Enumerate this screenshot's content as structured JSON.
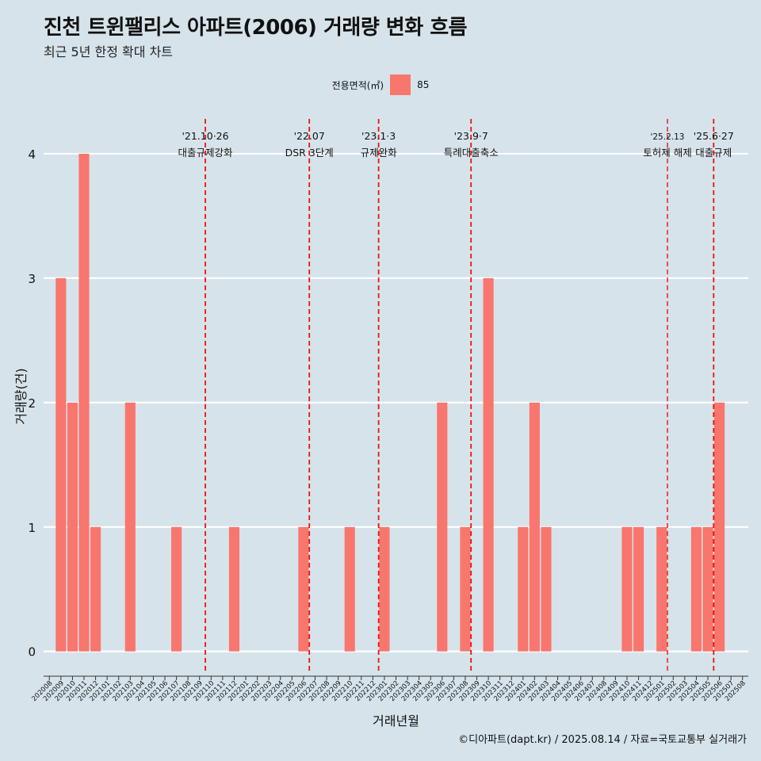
{
  "title": "진천 트윈팰리스 아파트(2006) 거래량 변화 흐름",
  "subtitle": "최근 5년 한정 확대 차트",
  "caption": "©디아파트(dapt.kr) / 2025.08.14 / 자료=국토교통부 실거래가",
  "legend": {
    "title": "전용면적(㎡)",
    "label": "85",
    "color": "#f8766d"
  },
  "chart_data": {
    "type": "bar",
    "xlabel": "거래년월",
    "ylabel": "거래량(건)",
    "ylim": [
      -0.18,
      4.28
    ],
    "yticks": [
      0,
      1,
      2,
      3,
      4
    ],
    "grid": true,
    "bar_color": "#f8766d",
    "categories": [
      "202008",
      "202009",
      "202010",
      "202011",
      "202012",
      "202101",
      "202102",
      "202103",
      "202104",
      "202105",
      "202106",
      "202107",
      "202108",
      "202109",
      "202110",
      "202111",
      "202112",
      "202201",
      "202202",
      "202203",
      "202204",
      "202205",
      "202206",
      "202207",
      "202208",
      "202209",
      "202210",
      "202211",
      "202212",
      "202301",
      "202302",
      "202303",
      "202304",
      "202305",
      "202306",
      "202307",
      "202308",
      "202309",
      "202310",
      "202311",
      "202312",
      "202401",
      "202402",
      "202403",
      "202404",
      "202405",
      "202406",
      "202407",
      "202408",
      "202409",
      "202410",
      "202411",
      "202412",
      "202501",
      "202502",
      "202503",
      "202504",
      "202505",
      "202506",
      "202507",
      "202508"
    ],
    "series": [
      {
        "name": "85",
        "values": [
          0,
          3,
          2,
          4,
          1,
          0,
          0,
          2,
          0,
          0,
          0,
          1,
          0,
          0,
          0,
          0,
          1,
          0,
          0,
          0,
          0,
          0,
          1,
          0,
          0,
          0,
          1,
          0,
          0,
          1,
          0,
          0,
          0,
          0,
          2,
          0,
          1,
          0,
          3,
          0,
          0,
          1,
          2,
          1,
          0,
          0,
          0,
          0,
          0,
          0,
          1,
          1,
          0,
          1,
          0,
          0,
          1,
          1,
          2,
          0,
          0
        ]
      }
    ],
    "annotations": [
      {
        "x": 13.5,
        "date": "'21.10·26",
        "label": "대출규제강화"
      },
      {
        "x": 22.5,
        "date": "'22.07",
        "label": "DSR 3단계"
      },
      {
        "x": 28.5,
        "date": "'23.1·3",
        "label": "규제완화"
      },
      {
        "x": 36.5,
        "date": "'23.9·7",
        "label": "특례대출축소"
      },
      {
        "x": 53.5,
        "date": "'25.2.13",
        "label": "토허제 해제"
      },
      {
        "x": 57.5,
        "date": "'25.6·27",
        "label": "대출규제"
      }
    ]
  }
}
